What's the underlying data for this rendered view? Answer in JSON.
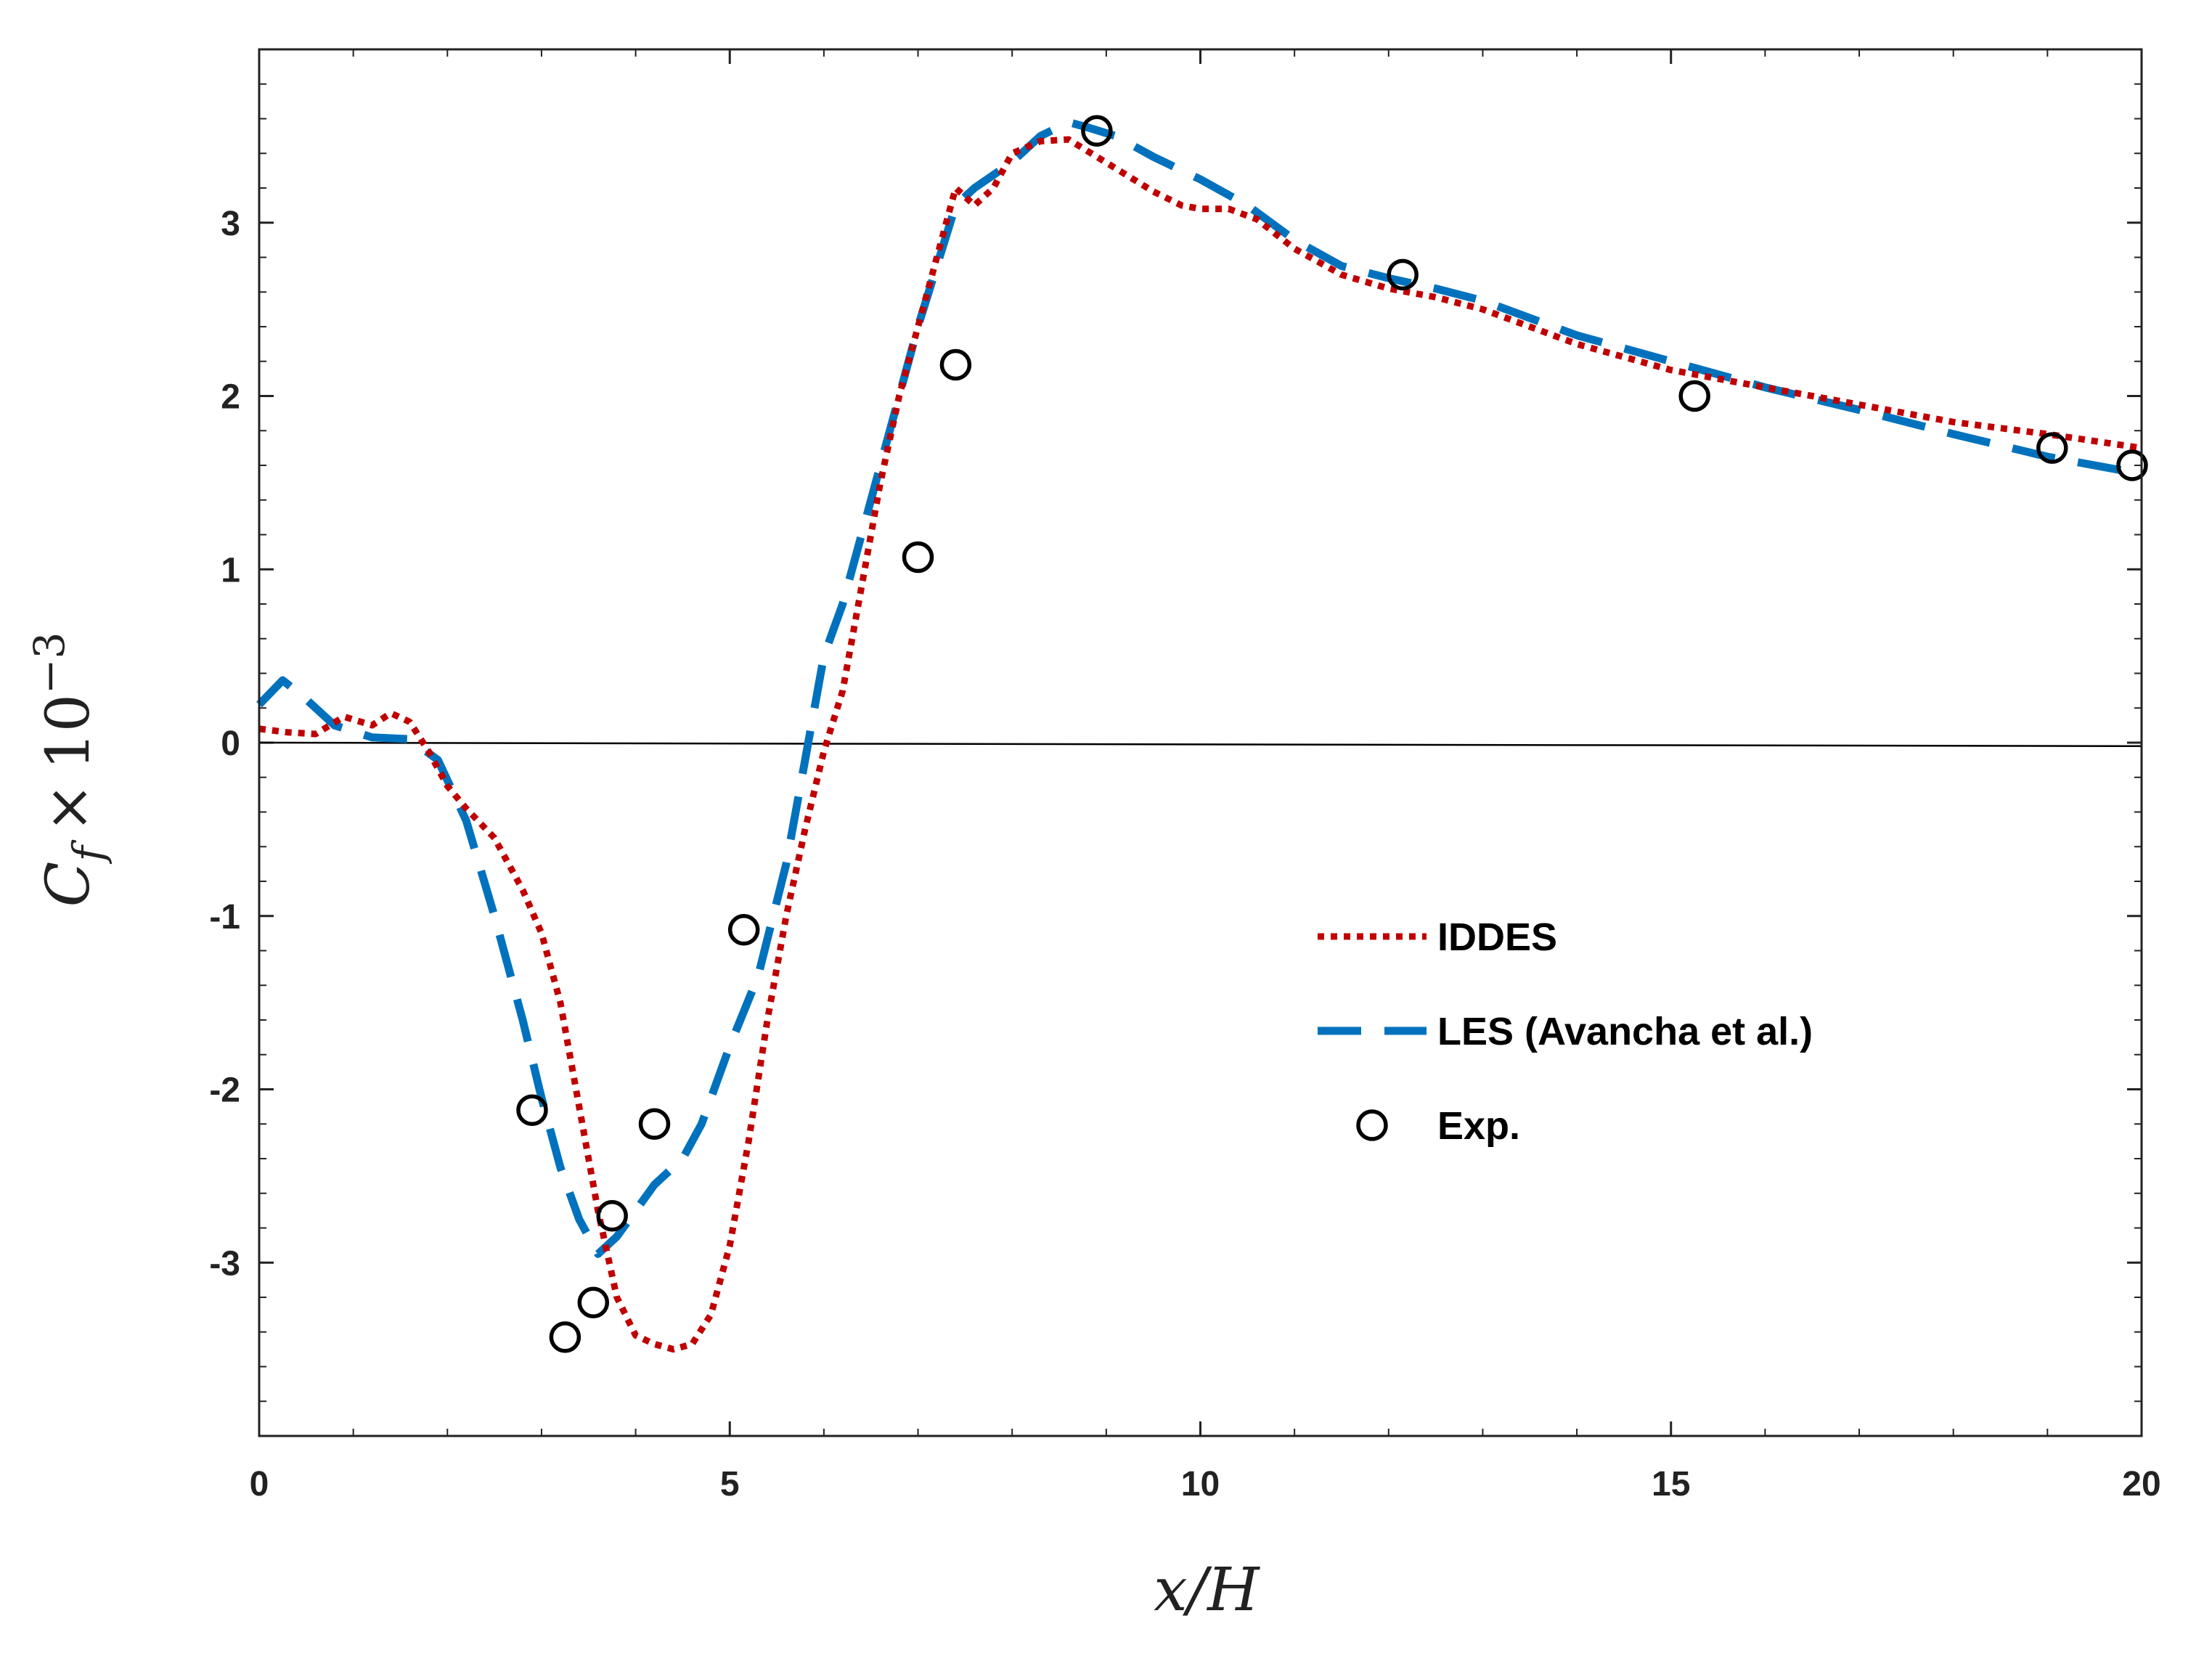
{
  "colors": {
    "iddes": "#c00000",
    "les": "#0072bd",
    "exp": "#000000",
    "axis": "#222222",
    "zero_line": "#000000"
  },
  "chart_data": {
    "type": "line",
    "title": "",
    "xlabel": {
      "main": "x/H",
      "math": "x/H"
    },
    "ylabel": {
      "main": "C",
      "subscript": "f",
      "times": "×",
      "base": "10",
      "exponent": "−3"
    },
    "xlim": [
      0,
      20
    ],
    "ylim": [
      -4,
      4
    ],
    "xticks": [
      0,
      5,
      10,
      15,
      20
    ],
    "xtick_labels": [
      "0",
      "5",
      "10",
      "15",
      "20"
    ],
    "yticks": [
      -3,
      -2,
      -1,
      0,
      1,
      2,
      3
    ],
    "ytick_labels": [
      "-3",
      "-2",
      "-1",
      "0",
      "1",
      "2",
      "3"
    ],
    "x_minor_step": 1,
    "y_minor_step": 0.2,
    "zero_line": {
      "from": [
        0,
        0.0
      ],
      "to": [
        20,
        -0.02
      ]
    },
    "legend": {
      "position": "lower-right",
      "entries": [
        "IDDES",
        "LES (Avancha et al.)",
        "Exp."
      ]
    },
    "series": [
      {
        "name": "IDDES",
        "style": "dotted",
        "x": [
          0,
          0.3,
          0.6,
          0.9,
          1.2,
          1.4,
          1.6,
          1.8,
          2.0,
          2.2,
          2.5,
          2.8,
          3.0,
          3.2,
          3.4,
          3.6,
          3.8,
          4.0,
          4.2,
          4.4,
          4.6,
          4.8,
          5.0,
          5.2,
          5.4,
          5.6,
          5.8,
          6.0,
          6.2,
          6.4,
          6.6,
          6.8,
          7.0,
          7.2,
          7.4,
          7.6,
          7.8,
          8.0,
          8.3,
          8.6,
          8.9,
          9.2,
          9.5,
          9.8,
          10.0,
          10.3,
          10.6,
          11.0,
          11.5,
          12.0,
          12.5,
          13.0,
          13.5,
          14.0,
          15.0,
          16.0,
          17.0,
          18.0,
          19.0,
          20.0
        ],
        "y": [
          0.08,
          0.06,
          0.05,
          0.15,
          0.1,
          0.17,
          0.12,
          -0.05,
          -0.25,
          -0.38,
          -0.55,
          -0.85,
          -1.1,
          -1.5,
          -2.1,
          -2.7,
          -3.2,
          -3.42,
          -3.47,
          -3.5,
          -3.47,
          -3.3,
          -2.9,
          -2.3,
          -1.6,
          -1.0,
          -0.5,
          -0.05,
          0.3,
          0.9,
          1.5,
          2.0,
          2.4,
          2.8,
          3.2,
          3.1,
          3.2,
          3.4,
          3.47,
          3.48,
          3.38,
          3.28,
          3.18,
          3.1,
          3.08,
          3.08,
          3.02,
          2.85,
          2.7,
          2.62,
          2.57,
          2.5,
          2.4,
          2.3,
          2.15,
          2.05,
          1.95,
          1.85,
          1.78,
          1.7
        ]
      },
      {
        "name": "LES (Avancha et al.)",
        "style": "dashed",
        "x": [
          0,
          0.25,
          0.5,
          0.8,
          1.2,
          1.6,
          1.9,
          2.2,
          2.5,
          2.8,
          3.0,
          3.2,
          3.4,
          3.6,
          3.8,
          4.0,
          4.2,
          4.5,
          4.7,
          5.0,
          5.3,
          5.6,
          5.8,
          6.0,
          6.2,
          6.4,
          6.6,
          6.8,
          7.0,
          7.2,
          7.4,
          7.6,
          8.0,
          8.3,
          8.6,
          8.8,
          9.1,
          9.5,
          10.0,
          10.5,
          11.0,
          11.5,
          12.0,
          12.5,
          13.0,
          14.0,
          15.0,
          16.0,
          17.0,
          18.0,
          19.0,
          20.0
        ],
        "y": [
          0.22,
          0.36,
          0.25,
          0.1,
          0.03,
          0.02,
          -0.1,
          -0.45,
          -1.0,
          -1.6,
          -2.05,
          -2.45,
          -2.75,
          -2.95,
          -2.85,
          -2.7,
          -2.55,
          -2.4,
          -2.2,
          -1.75,
          -1.35,
          -0.7,
          -0.1,
          0.5,
          0.8,
          1.2,
          1.6,
          2.0,
          2.4,
          2.75,
          3.1,
          3.2,
          3.35,
          3.5,
          3.58,
          3.55,
          3.5,
          3.38,
          3.25,
          3.1,
          2.9,
          2.75,
          2.68,
          2.62,
          2.55,
          2.35,
          2.2,
          2.05,
          1.92,
          1.78,
          1.65,
          1.55
        ]
      },
      {
        "name": "Exp.",
        "style": "markers",
        "x": [
          2.9,
          3.25,
          3.55,
          3.75,
          4.2,
          5.15,
          7.0,
          7.4,
          8.9,
          12.15,
          15.25,
          19.05,
          19.9
        ],
        "y": [
          -2.12,
          -3.43,
          -3.23,
          -2.73,
          -2.2,
          -1.08,
          1.07,
          2.18,
          3.53,
          2.7,
          2.0,
          1.7,
          1.6
        ]
      }
    ]
  }
}
